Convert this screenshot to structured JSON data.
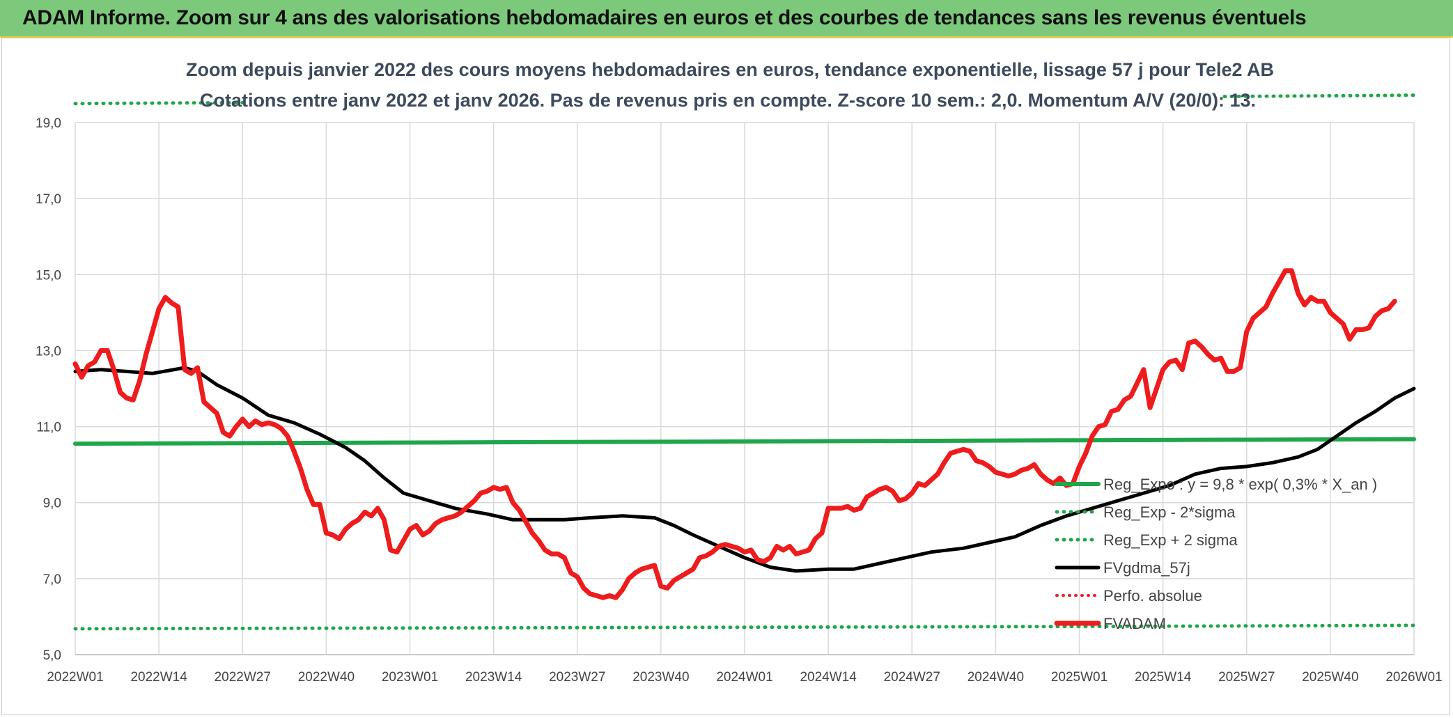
{
  "banner": {
    "title": "ADAM Informe. Zoom sur 4 ans des valorisations hebdomadaires en euros et des courbes de tendances sans les revenus éventuels"
  },
  "colors": {
    "banner_bg": "#7dc97c",
    "regression": "#1fa64a",
    "sigma": "#1fa64a",
    "moving_average": "#000000",
    "perfo": "#e3262a",
    "fvadam": "#ee1c1c"
  },
  "chart_data": {
    "type": "line",
    "title": "Zoom depuis janvier 2022 des cours moyens hebdomadaires en euros, tendance exponentielle, lissage 57 j pour Tele2 AB",
    "subtitle": "Cotations entre janv 2022 et janv 2026. Pas de revenus pris en compte. Z-score 10 sem.: 2,0. Momentum A/V (20/0): 13.",
    "xlabel": "",
    "ylabel": "",
    "ylim": [
      5.0,
      19.0
    ],
    "yticks": [
      5.0,
      7.0,
      9.0,
      11.0,
      13.0,
      15.0,
      17.0,
      19.0
    ],
    "ytick_labels": [
      "5,0",
      "7,0",
      "9,0",
      "11,0",
      "13,0",
      "15,0",
      "17,0",
      "19,0"
    ],
    "x_tick_labels": [
      "2022W01",
      "2022W14",
      "2022W27",
      "2022W40",
      "2023W01",
      "2023W14",
      "2023W27",
      "2023W40",
      "2024W01",
      "2024W14",
      "2024W27",
      "2024W40",
      "2025W01",
      "2025W14",
      "2025W27",
      "2025W40",
      "2026W01"
    ],
    "grid": true,
    "legend_position": "bottom-right",
    "legend": [
      {
        "key": "reg",
        "label": "Reg_Expo : y = 9,8 * exp( 0,3% *  X_an )",
        "style": "solid-thick"
      },
      {
        "key": "low",
        "label": "Reg_Exp - 2*sigma",
        "style": "dotted"
      },
      {
        "key": "high",
        "label": "Reg_Exp + 2 sigma",
        "style": "dotted"
      },
      {
        "key": "ma",
        "label": "FVgdma_57j",
        "style": "solid"
      },
      {
        "key": "perfo",
        "label": "Perfo. absolue",
        "style": "dotted"
      },
      {
        "key": "fv",
        "label": "FVADAM",
        "style": "solid-thick"
      }
    ],
    "series": [
      {
        "key": "reg",
        "name": "Reg_Expo : y = 9,8 * exp( 0,3% *  X_an )",
        "points": [
          [
            0,
            10.55
          ],
          [
            52,
            10.58
          ],
          [
            104,
            10.61
          ],
          [
            156,
            10.64
          ],
          [
            208,
            10.67
          ]
        ]
      },
      {
        "key": "low",
        "name": "Reg_Exp - 2*sigma",
        "points": [
          [
            0,
            5.68
          ],
          [
            52,
            5.7
          ],
          [
            104,
            5.72
          ],
          [
            156,
            5.74
          ],
          [
            208,
            5.77
          ]
        ]
      },
      {
        "key": "high",
        "name": "Reg_Exp + 2 sigma",
        "points": [
          [
            0,
            19.5
          ],
          [
            52,
            19.55
          ],
          [
            104,
            19.6
          ],
          [
            156,
            19.66
          ],
          [
            208,
            19.72
          ]
        ]
      },
      {
        "key": "ma",
        "name": "FVgdma_57j",
        "points": [
          [
            0,
            12.45
          ],
          [
            4,
            12.5
          ],
          [
            8,
            12.45
          ],
          [
            12,
            12.4
          ],
          [
            17,
            12.55
          ],
          [
            19,
            12.45
          ],
          [
            22,
            12.1
          ],
          [
            26,
            11.75
          ],
          [
            30,
            11.3
          ],
          [
            34,
            11.1
          ],
          [
            38,
            10.8
          ],
          [
            42,
            10.45
          ],
          [
            45,
            10.1
          ],
          [
            48,
            9.65
          ],
          [
            51,
            9.25
          ],
          [
            55,
            9.05
          ],
          [
            59,
            8.85
          ],
          [
            64,
            8.7
          ],
          [
            68,
            8.55
          ],
          [
            72,
            8.55
          ],
          [
            76,
            8.55
          ],
          [
            80,
            8.6
          ],
          [
            85,
            8.65
          ],
          [
            90,
            8.6
          ],
          [
            93,
            8.4
          ],
          [
            96,
            8.15
          ],
          [
            100,
            7.85
          ],
          [
            104,
            7.55
          ],
          [
            108,
            7.3
          ],
          [
            112,
            7.2
          ],
          [
            117,
            7.25
          ],
          [
            121,
            7.25
          ],
          [
            125,
            7.4
          ],
          [
            129,
            7.55
          ],
          [
            133,
            7.7
          ],
          [
            138,
            7.8
          ],
          [
            142,
            7.95
          ],
          [
            146,
            8.1
          ],
          [
            150,
            8.4
          ],
          [
            154,
            8.65
          ],
          [
            158,
            8.85
          ],
          [
            162,
            9.05
          ],
          [
            166,
            9.25
          ],
          [
            170,
            9.45
          ],
          [
            174,
            9.75
          ],
          [
            178,
            9.9
          ],
          [
            182,
            9.95
          ],
          [
            186,
            10.05
          ],
          [
            190,
            10.2
          ],
          [
            193,
            10.4
          ],
          [
            196,
            10.75
          ],
          [
            199,
            11.1
          ],
          [
            202,
            11.4
          ],
          [
            205,
            11.75
          ],
          [
            208,
            12.0
          ]
        ]
      },
      {
        "key": "perfo",
        "name": "Perfo. absolue",
        "points": []
      },
      {
        "key": "fv",
        "name": "FVADAM",
        "points": [
          [
            0,
            12.65
          ],
          [
            1,
            12.3
          ],
          [
            2,
            12.6
          ],
          [
            3,
            12.7
          ],
          [
            4,
            13.0
          ],
          [
            5,
            13.0
          ],
          [
            6,
            12.5
          ],
          [
            7,
            11.9
          ],
          [
            8,
            11.75
          ],
          [
            9,
            11.7
          ],
          [
            10,
            12.2
          ],
          [
            11,
            12.9
          ],
          [
            12,
            13.5
          ],
          [
            13,
            14.1
          ],
          [
            14,
            14.4
          ],
          [
            15,
            14.25
          ],
          [
            16,
            14.15
          ],
          [
            17,
            12.5
          ],
          [
            18,
            12.4
          ],
          [
            19,
            12.55
          ],
          [
            20,
            11.65
          ],
          [
            21,
            11.5
          ],
          [
            22,
            11.35
          ],
          [
            23,
            10.85
          ],
          [
            24,
            10.75
          ],
          [
            25,
            11.0
          ],
          [
            26,
            11.2
          ],
          [
            27,
            11.0
          ],
          [
            28,
            11.15
          ],
          [
            29,
            11.05
          ],
          [
            30,
            11.1
          ],
          [
            31,
            11.05
          ],
          [
            32,
            10.95
          ],
          [
            33,
            10.75
          ],
          [
            34,
            10.35
          ],
          [
            35,
            9.9
          ],
          [
            36,
            9.35
          ],
          [
            37,
            8.95
          ],
          [
            38,
            8.95
          ],
          [
            39,
            8.2
          ],
          [
            40,
            8.15
          ],
          [
            41,
            8.05
          ],
          [
            42,
            8.3
          ],
          [
            43,
            8.45
          ],
          [
            44,
            8.55
          ],
          [
            45,
            8.75
          ],
          [
            46,
            8.65
          ],
          [
            47,
            8.85
          ],
          [
            48,
            8.55
          ],
          [
            49,
            7.75
          ],
          [
            50,
            7.7
          ],
          [
            51,
            8.0
          ],
          [
            52,
            8.3
          ],
          [
            53,
            8.4
          ],
          [
            54,
            8.15
          ],
          [
            55,
            8.25
          ],
          [
            56,
            8.45
          ],
          [
            57,
            8.55
          ],
          [
            58,
            8.6
          ],
          [
            59,
            8.65
          ],
          [
            60,
            8.75
          ],
          [
            61,
            8.9
          ],
          [
            62,
            9.05
          ],
          [
            63,
            9.25
          ],
          [
            64,
            9.3
          ],
          [
            65,
            9.4
          ],
          [
            66,
            9.35
          ],
          [
            67,
            9.4
          ],
          [
            68,
            9.0
          ],
          [
            69,
            8.8
          ],
          [
            70,
            8.5
          ],
          [
            71,
            8.2
          ],
          [
            72,
            8.0
          ],
          [
            73,
            7.75
          ],
          [
            74,
            7.65
          ],
          [
            75,
            7.65
          ],
          [
            76,
            7.55
          ],
          [
            77,
            7.15
          ],
          [
            78,
            7.05
          ],
          [
            79,
            6.75
          ],
          [
            80,
            6.6
          ],
          [
            81,
            6.55
          ],
          [
            82,
            6.5
          ],
          [
            83,
            6.55
          ],
          [
            84,
            6.5
          ],
          [
            85,
            6.7
          ],
          [
            86,
            7.0
          ],
          [
            87,
            7.15
          ],
          [
            88,
            7.25
          ],
          [
            89,
            7.3
          ],
          [
            90,
            7.35
          ],
          [
            91,
            6.8
          ],
          [
            92,
            6.75
          ],
          [
            93,
            6.95
          ],
          [
            94,
            7.05
          ],
          [
            95,
            7.15
          ],
          [
            96,
            7.25
          ],
          [
            97,
            7.55
          ],
          [
            98,
            7.6
          ],
          [
            99,
            7.7
          ],
          [
            100,
            7.85
          ],
          [
            101,
            7.9
          ],
          [
            102,
            7.85
          ],
          [
            103,
            7.8
          ],
          [
            104,
            7.7
          ],
          [
            105,
            7.75
          ],
          [
            106,
            7.5
          ],
          [
            107,
            7.45
          ],
          [
            108,
            7.55
          ],
          [
            109,
            7.85
          ],
          [
            110,
            7.75
          ],
          [
            111,
            7.85
          ],
          [
            112,
            7.65
          ],
          [
            113,
            7.7
          ],
          [
            114,
            7.75
          ],
          [
            115,
            8.05
          ],
          [
            116,
            8.2
          ],
          [
            117,
            8.85
          ],
          [
            118,
            8.85
          ],
          [
            119,
            8.85
          ],
          [
            120,
            8.9
          ],
          [
            121,
            8.8
          ],
          [
            122,
            8.85
          ],
          [
            123,
            9.15
          ],
          [
            124,
            9.25
          ],
          [
            125,
            9.35
          ],
          [
            126,
            9.4
          ],
          [
            127,
            9.3
          ],
          [
            128,
            9.05
          ],
          [
            129,
            9.1
          ],
          [
            130,
            9.25
          ],
          [
            131,
            9.5
          ],
          [
            132,
            9.45
          ],
          [
            133,
            9.6
          ],
          [
            134,
            9.75
          ],
          [
            135,
            10.05
          ],
          [
            136,
            10.3
          ],
          [
            137,
            10.35
          ],
          [
            138,
            10.4
          ],
          [
            139,
            10.35
          ],
          [
            140,
            10.1
          ],
          [
            141,
            10.05
          ],
          [
            142,
            9.95
          ],
          [
            143,
            9.8
          ],
          [
            144,
            9.75
          ],
          [
            145,
            9.7
          ],
          [
            146,
            9.75
          ],
          [
            147,
            9.85
          ],
          [
            148,
            9.9
          ],
          [
            149,
            10.0
          ],
          [
            150,
            9.75
          ],
          [
            151,
            9.6
          ],
          [
            152,
            9.5
          ],
          [
            153,
            9.65
          ],
          [
            154,
            9.45
          ],
          [
            155,
            9.5
          ],
          [
            156,
            9.95
          ],
          [
            157,
            10.3
          ],
          [
            158,
            10.75
          ],
          [
            159,
            11.0
          ],
          [
            160,
            11.05
          ],
          [
            161,
            11.4
          ],
          [
            162,
            11.45
          ],
          [
            163,
            11.7
          ],
          [
            164,
            11.8
          ],
          [
            165,
            12.15
          ],
          [
            166,
            12.5
          ],
          [
            167,
            11.5
          ],
          [
            168,
            12.0
          ],
          [
            169,
            12.5
          ],
          [
            170,
            12.7
          ],
          [
            171,
            12.75
          ],
          [
            172,
            12.5
          ],
          [
            173,
            13.2
          ],
          [
            174,
            13.25
          ],
          [
            175,
            13.1
          ],
          [
            176,
            12.9
          ],
          [
            177,
            12.75
          ],
          [
            178,
            12.8
          ],
          [
            179,
            12.45
          ],
          [
            180,
            12.45
          ],
          [
            181,
            12.55
          ],
          [
            182,
            13.5
          ],
          [
            183,
            13.85
          ],
          [
            184,
            14.0
          ],
          [
            185,
            14.15
          ],
          [
            186,
            14.5
          ],
          [
            187,
            14.8
          ],
          [
            188,
            15.1
          ],
          [
            189,
            15.1
          ],
          [
            190,
            14.5
          ],
          [
            191,
            14.2
          ],
          [
            192,
            14.4
          ],
          [
            193,
            14.3
          ],
          [
            194,
            14.3
          ],
          [
            195,
            14.0
          ],
          [
            196,
            13.85
          ],
          [
            197,
            13.7
          ],
          [
            198,
            13.3
          ],
          [
            199,
            13.55
          ],
          [
            200,
            13.55
          ],
          [
            201,
            13.6
          ],
          [
            202,
            13.9
          ],
          [
            203,
            14.05
          ],
          [
            204,
            14.1
          ],
          [
            205,
            14.3
          ]
        ]
      }
    ]
  }
}
